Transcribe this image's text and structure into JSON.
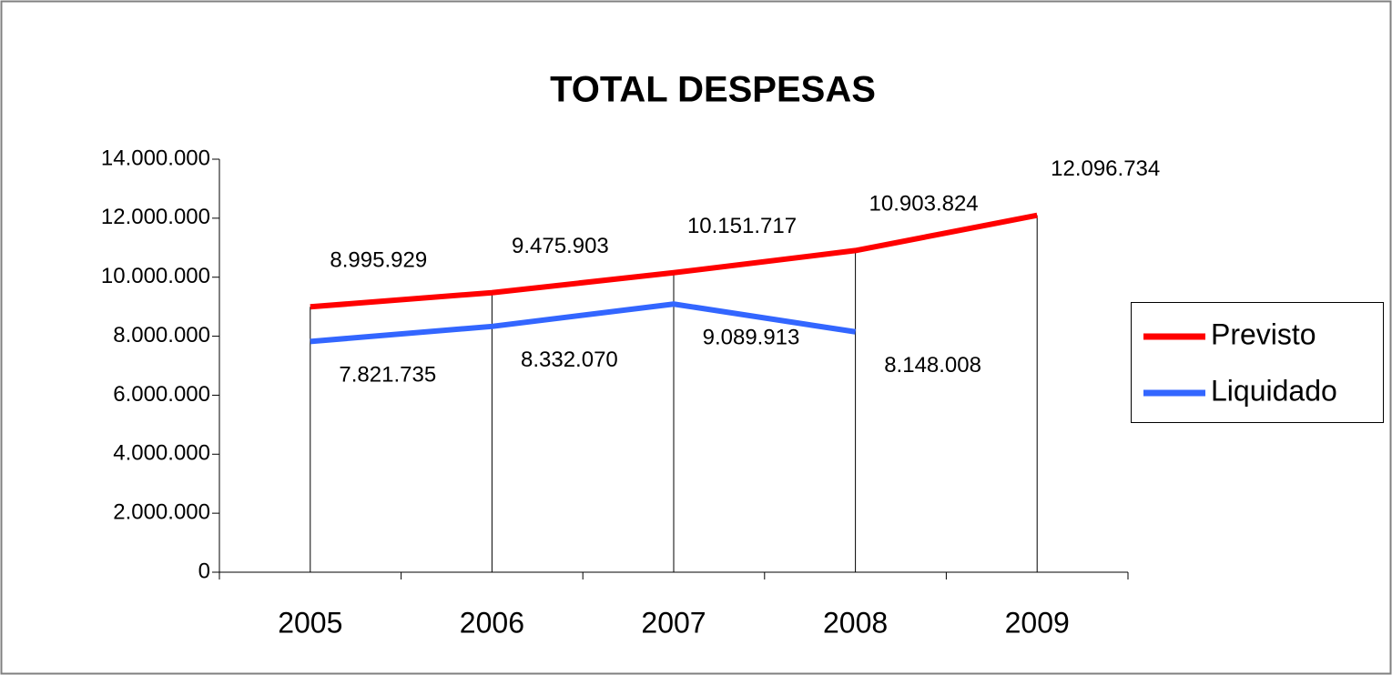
{
  "chart_data": {
    "type": "line",
    "title": "TOTAL DESPESAS",
    "categories": [
      "2005",
      "2006",
      "2007",
      "2008",
      "2009"
    ],
    "series": [
      {
        "name": "Previsto",
        "color": "#ff0000",
        "values": [
          8995929,
          9475903,
          10151717,
          10903824,
          12096734
        ],
        "value_labels": [
          "8.995.929",
          "9.475.903",
          "10.151.717",
          "10.903.824",
          "12.096.734"
        ]
      },
      {
        "name": "Liquidado",
        "color": "#3366ff",
        "values": [
          7821735,
          8332070,
          9089913,
          8148008,
          null
        ],
        "value_labels": [
          "7.821.735",
          "8.332.070",
          "9.089.913",
          "8.148.008",
          null
        ]
      }
    ],
    "ylim": [
      0,
      14000000
    ],
    "yticks": [
      0,
      {
        "value": 2000000,
        "label": "2.000.000"
      },
      {
        "value": 4000000,
        "label": "4.000.000"
      },
      {
        "value": 6000000,
        "label": "6.000.000"
      },
      {
        "value": 8000000,
        "label": "8.000.000"
      },
      {
        "value": 10000000,
        "label": "10.000.000"
      },
      {
        "value": 12000000,
        "label": "12.000.000"
      },
      {
        "value": 14000000,
        "label": "14.000.000"
      }
    ],
    "legend": "right",
    "grid": false
  }
}
